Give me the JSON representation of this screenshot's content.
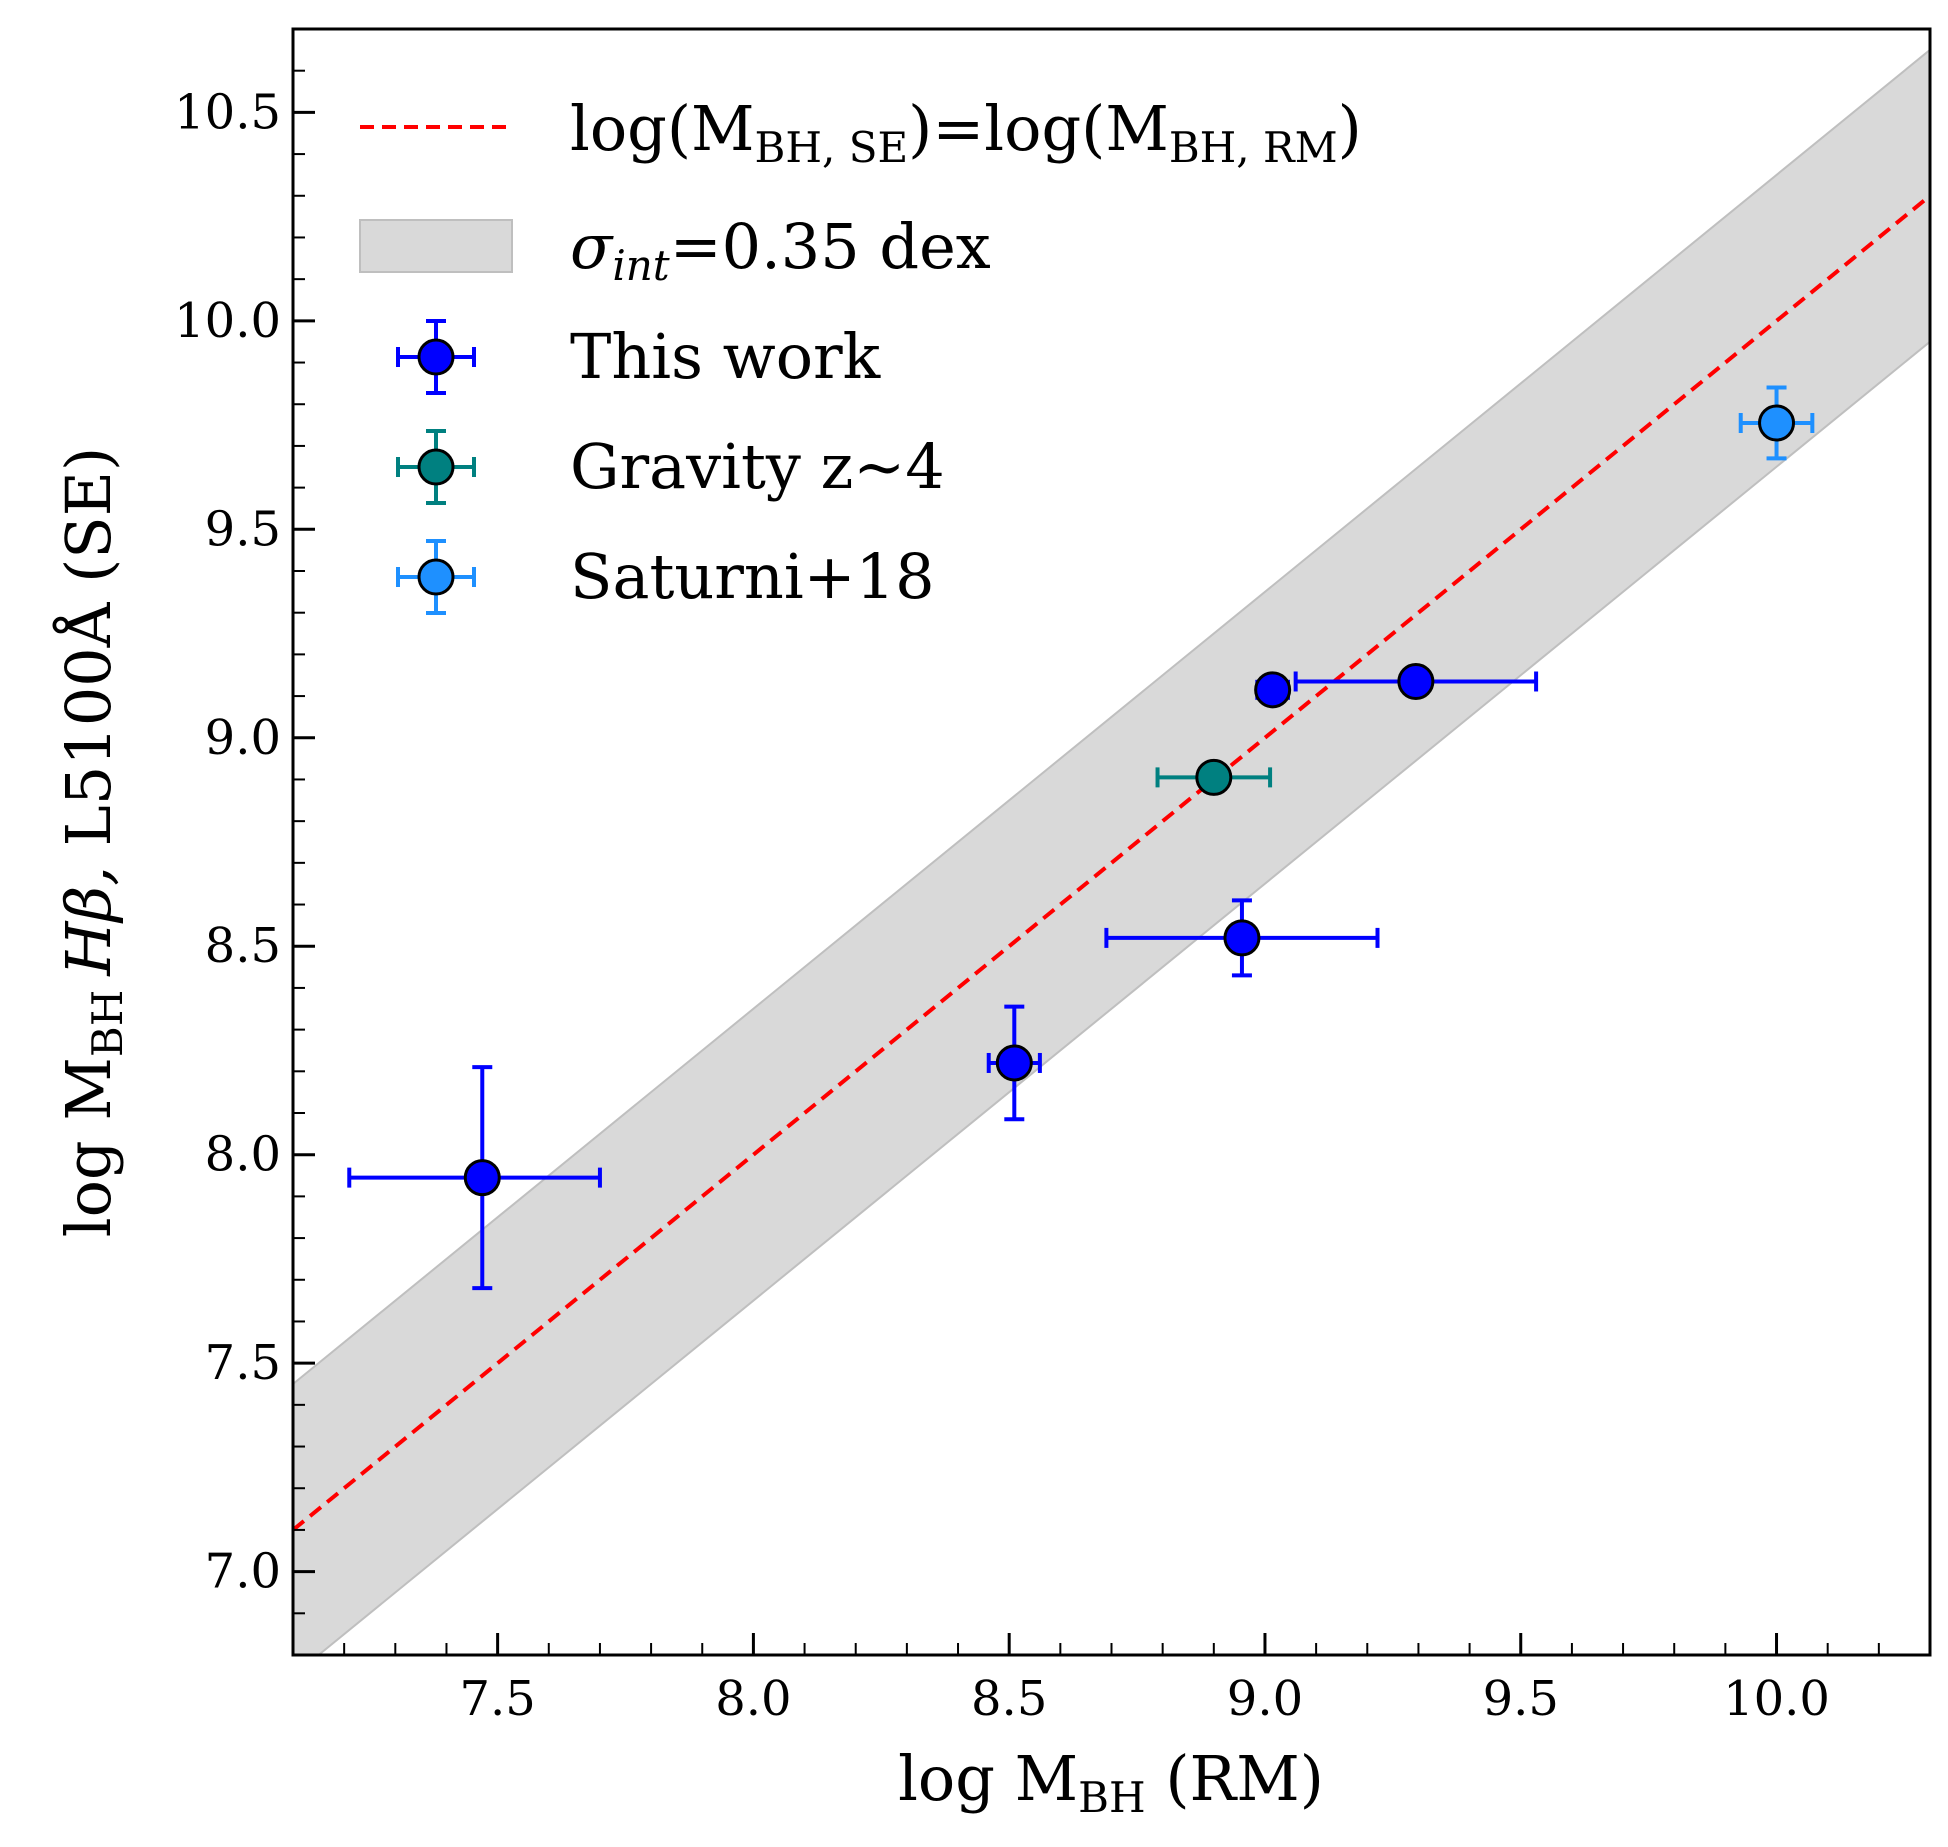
{
  "chart_data": {
    "type": "scatter",
    "xlabel": {
      "prefix": "log M",
      "sub": "BH",
      "suffix": " (RM)"
    },
    "ylabel": {
      "prefix": "log M",
      "sub": "BH",
      "italic": "Hβ,",
      "suffix": " L5100Å (SE)"
    },
    "xlim": [
      7.1,
      10.3
    ],
    "ylim": [
      6.8,
      10.7
    ],
    "x_ticks": [
      7.5,
      8.0,
      8.5,
      9.0,
      9.5,
      10.0
    ],
    "x_tick_labels": [
      "7.5",
      "8.0",
      "8.5",
      "9.0",
      "9.5",
      "10.0"
    ],
    "y_ticks": [
      7.0,
      7.5,
      8.0,
      8.5,
      9.0,
      9.5,
      10.0,
      10.5
    ],
    "y_tick_labels": [
      "7.0",
      "7.5",
      "8.0",
      "8.5",
      "9.0",
      "9.5",
      "10.0",
      "10.5"
    ],
    "minor_step": 0.1,
    "one_to_one": {
      "label": {
        "a": "log(M",
        "sub1": "BH, SE",
        "b": ")=log(M",
        "sub2": "BH, RM",
        "c": ")"
      },
      "color": "#ff0000"
    },
    "band": {
      "sigma": 0.35,
      "label": {
        "sym": "σ",
        "sub": "int",
        "rest": "=0.35 dex"
      },
      "color": "#d9d9d9"
    },
    "series": [
      {
        "name": "This work",
        "color": "#0000ff",
        "points": [
          {
            "x": 7.47,
            "y": 7.945,
            "xerr": [
              0.26,
              0.23
            ],
            "yerr": [
              0.265,
              0.265
            ]
          },
          {
            "x": 8.51,
            "y": 8.22,
            "xerr": [
              0.05,
              0.05
            ],
            "yerr": [
              0.135,
              0.135
            ]
          },
          {
            "x": 8.955,
            "y": 8.52,
            "xerr": [
              0.265,
              0.265
            ],
            "yerr": [
              0.09,
              0.09
            ]
          },
          {
            "x": 9.015,
            "y": 9.115,
            "xerr": [
              0.03,
              0.03
            ],
            "yerr": [
              0.0,
              0.0
            ]
          },
          {
            "x": 9.295,
            "y": 9.135,
            "xerr": [
              0.235,
              0.235
            ],
            "yerr": [
              0.0,
              0.0
            ]
          }
        ]
      },
      {
        "name": "Gravity z~4",
        "color": "#008080",
        "points": [
          {
            "x": 8.9,
            "y": 8.905,
            "xerr": [
              0.11,
              0.11
            ],
            "yerr": [
              0.0,
              0.0
            ]
          }
        ]
      },
      {
        "name": "Saturni+18",
        "color": "#1e90ff",
        "points": [
          {
            "x": 10.0,
            "y": 9.755,
            "xerr": [
              0.07,
              0.07
            ],
            "yerr": [
              0.085,
              0.085
            ]
          }
        ]
      }
    ],
    "legend_position": "upper-left"
  }
}
